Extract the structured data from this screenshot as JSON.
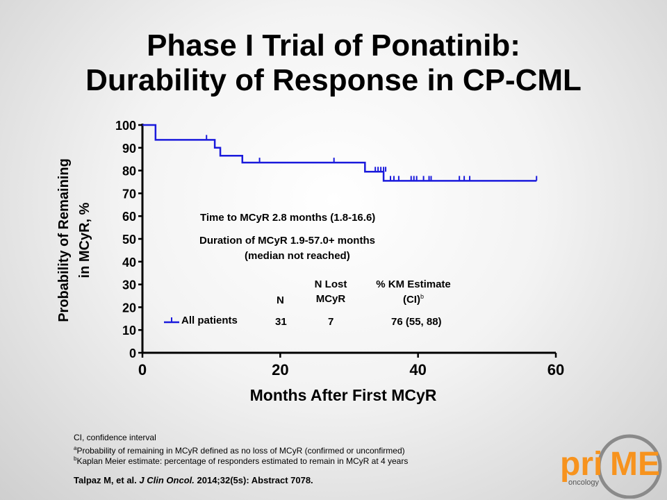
{
  "title": {
    "line1": "Phase I Trial of Ponatinib:",
    "line2": "Durability of Response in CP-CML"
  },
  "chart_data": {
    "type": "line",
    "xlabel": "Months After First MCyR",
    "ylabel_line1": "Probability of Remaining",
    "ylabel_line2": "in MCyR, %",
    "xlim": [
      0,
      60
    ],
    "ylim": [
      0,
      100
    ],
    "x_ticks": [
      "0",
      "20",
      "40",
      "60"
    ],
    "y_ticks": [
      "0",
      "10",
      "20",
      "30",
      "40",
      "50",
      "60",
      "70",
      "80",
      "90",
      "100"
    ],
    "grid": false,
    "legend_position": "lower-left",
    "series": [
      {
        "name": "All patients",
        "color": "#1a1adc",
        "steps": [
          [
            0,
            100
          ],
          [
            1.9,
            93.5
          ],
          [
            10.5,
            90
          ],
          [
            11.3,
            86.5
          ],
          [
            14.5,
            83.5
          ],
          [
            32.3,
            79.5
          ],
          [
            35,
            75.5
          ],
          [
            57.2,
            75.5
          ]
        ],
        "censored": [
          [
            9.3,
            93.5
          ],
          [
            17,
            83.5
          ],
          [
            27.8,
            83.5
          ],
          [
            33.8,
            79.5
          ],
          [
            34.2,
            79.5
          ],
          [
            34.6,
            79.5
          ],
          [
            35,
            79.5
          ],
          [
            35.3,
            79.5
          ],
          [
            36,
            75.5
          ],
          [
            36.5,
            75.5
          ],
          [
            37.2,
            75.5
          ],
          [
            39,
            75.5
          ],
          [
            39.4,
            75.5
          ],
          [
            39.8,
            75.5
          ],
          [
            40.8,
            75.5
          ],
          [
            41.6,
            75.5
          ],
          [
            41.9,
            75.5
          ],
          [
            46,
            75.5
          ],
          [
            46.7,
            75.5
          ],
          [
            47.5,
            75.5
          ],
          [
            57.2,
            75.5
          ]
        ]
      }
    ]
  },
  "annotations": {
    "time_to_mcyr": "Time to MCyR 2.8 months (1.8-16.6)",
    "duration_line1": "Duration of MCyR 1.9-57.0+ months",
    "duration_line2": "(median not reached)"
  },
  "table": {
    "headers": {
      "n": "N",
      "lost_line1": "N Lost",
      "lost_line2": "MCyR",
      "km_line1": "% KM Estimate",
      "km_line2": "(CI)",
      "km_sup": "b"
    },
    "legend_label": "All patients",
    "row": {
      "n": "31",
      "lost": "7",
      "km": "76 (55, 88)"
    }
  },
  "footnotes": {
    "ci": "CI, confidence interval",
    "a_mark": "a",
    "a_text": "Probability of remaining in MCyR defined as no loss of MCyR (confirmed or unconfirmed)",
    "b_mark": "b",
    "b_text": "Kaplan Meier estimate: percentage of responders estimated to remain in MCyR at 4 years"
  },
  "citation": {
    "authors": "Talpaz M, et al.",
    "journal": "J Clin Oncol.",
    "details": "2014;32(5s): Abstract 7078."
  },
  "logo": {
    "text_pri": "pri",
    "text_me": "ME",
    "text_sub": "oncology",
    "color_orange": "#f7931e",
    "color_gray": "#8a8a8a"
  }
}
